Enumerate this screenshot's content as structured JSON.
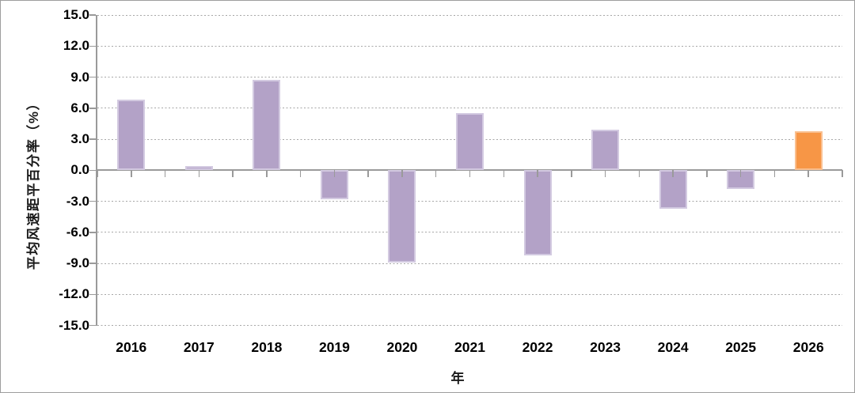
{
  "chart_data": {
    "type": "bar",
    "title": "",
    "xlabel": "年",
    "ylabel": "平均风速距平百分率（%）",
    "categories": [
      "2016",
      "2017",
      "2018",
      "2019",
      "2020",
      "2021",
      "2022",
      "2023",
      "2024",
      "2025",
      "2026"
    ],
    "values": [
      6.8,
      0.4,
      8.7,
      -2.8,
      -8.9,
      5.5,
      -8.2,
      3.9,
      -3.7,
      -1.8,
      3.8
    ],
    "ylim": [
      -15.0,
      15.0
    ],
    "ytick_step": 3.0,
    "yticks": [
      15,
      12,
      9,
      6,
      3,
      0,
      -3,
      -6,
      -9,
      -12,
      -15
    ],
    "ytick_labels": [
      "15.0",
      "12.0",
      "9.0",
      "6.0",
      "3.0",
      "0.0",
      "-3.0",
      "-6.0",
      "-9.0",
      "-12.0",
      "-15.0"
    ],
    "grid": true,
    "legend_position": "none",
    "highlight_category": "2026",
    "highlight_index": 10,
    "colors": {
      "bar": "#b3a2c7",
      "bar_border": "#d3cae1",
      "highlight": "#f79646",
      "highlight_border": "#fabf8f",
      "grid": "#a6a6a6",
      "axis": "#9a9a9a",
      "text": "#000000"
    }
  }
}
